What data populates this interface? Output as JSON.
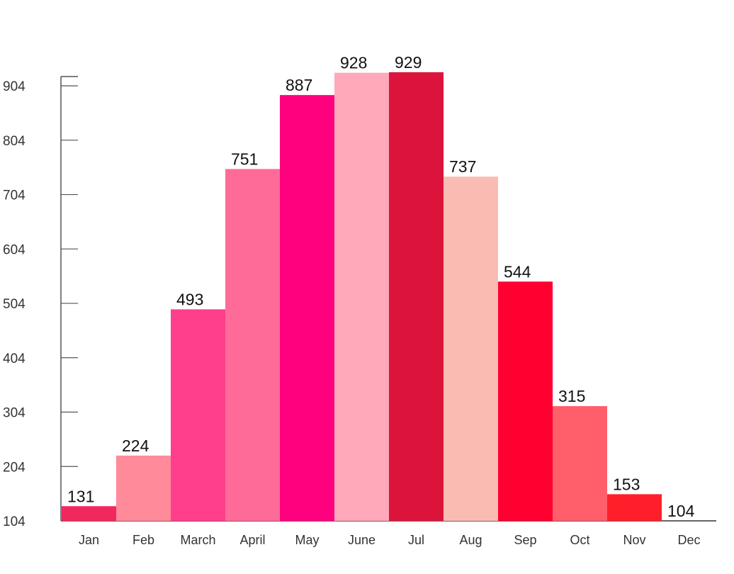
{
  "chart_data": {
    "type": "bar",
    "title": "",
    "xlabel": "",
    "ylabel": "",
    "categories": [
      "Jan",
      "Feb",
      "March",
      "April",
      "May",
      "June",
      "Jul",
      "Aug",
      "Sep",
      "Oct",
      "Nov",
      "Dec"
    ],
    "values": [
      131,
      224,
      493,
      751,
      887,
      928,
      929,
      737,
      544,
      315,
      153,
      104
    ],
    "colors": [
      "#F0285E",
      "#FF8A9A",
      "#FF3E8C",
      "#FF6B98",
      "#FF007F",
      "#FFA9BA",
      "#DC143C",
      "#F9BCB3",
      "#FF0030",
      "#FF5E6B",
      "#FF1F2A",
      "#FF8FA3"
    ],
    "yticks": [
      104,
      204,
      304,
      404,
      504,
      604,
      704,
      804,
      904
    ],
    "ylim": [
      104,
      938
    ],
    "grid": false,
    "legend": "none"
  }
}
